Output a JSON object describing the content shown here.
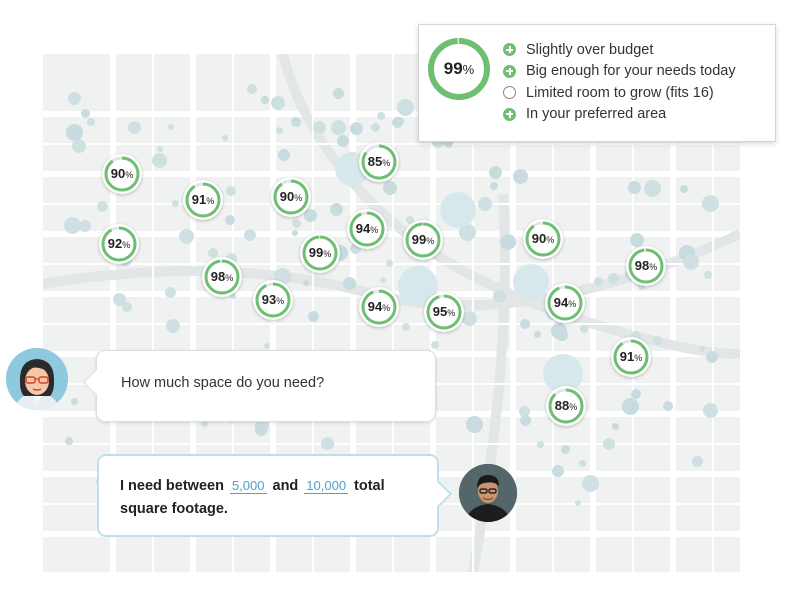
{
  "summary": {
    "score": "99",
    "score_unit": "%",
    "score_fraction": 0.99,
    "criteria": [
      {
        "icon": "plus-circle-icon",
        "label": "Slightly over budget"
      },
      {
        "icon": "plus-circle-icon",
        "label": "Big enough for your needs today"
      },
      {
        "icon": "empty-circle-icon",
        "label": "Limited room to grow (fits 16)"
      },
      {
        "icon": "plus-circle-icon",
        "label": "In your preferred area"
      }
    ]
  },
  "map_pins": [
    {
      "value": "90",
      "unit": "%"
    },
    {
      "value": "91",
      "unit": "%"
    },
    {
      "value": "90",
      "unit": "%"
    },
    {
      "value": "85",
      "unit": "%"
    },
    {
      "value": "92",
      "unit": "%"
    },
    {
      "value": "94",
      "unit": "%"
    },
    {
      "value": "99",
      "unit": "%"
    },
    {
      "value": "99",
      "unit": "%"
    },
    {
      "value": "90",
      "unit": "%"
    },
    {
      "value": "98",
      "unit": "%"
    },
    {
      "value": "98",
      "unit": "%"
    },
    {
      "value": "93",
      "unit": "%"
    },
    {
      "value": "94",
      "unit": "%"
    },
    {
      "value": "95",
      "unit": "%"
    },
    {
      "value": "94",
      "unit": "%"
    },
    {
      "value": "91",
      "unit": "%"
    },
    {
      "value": "88",
      "unit": "%"
    }
  ],
  "chat": {
    "question": "How much space do you need?",
    "answer_prefix": "I need between",
    "min_value": "5,000",
    "joiner": "and",
    "max_value": "10,000",
    "answer_suffix_1": "total",
    "answer_suffix_2": "square footage."
  },
  "colors": {
    "accent": "#6fbf73",
    "ring_track": "#e2e6e6",
    "link": "#4aa3c8"
  }
}
